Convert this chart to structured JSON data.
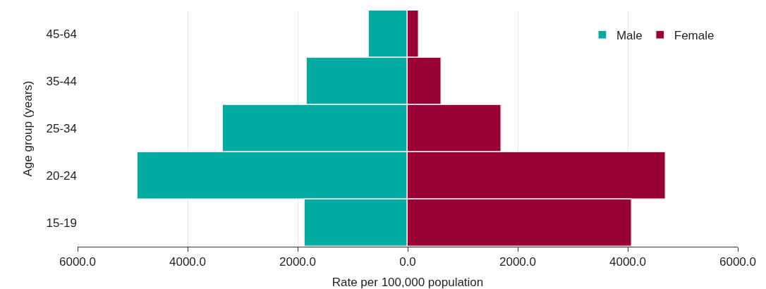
{
  "chart_data": {
    "type": "bar",
    "orientation": "horizontal",
    "xlabel": "Rate per 100,000 population",
    "ylabel": "Age group (years)",
    "categories": [
      "45-64",
      "35-44",
      "25-34",
      "20-24",
      "15-19"
    ],
    "series": [
      {
        "name": "Male",
        "color": "#00ac9f",
        "values": [
          -700,
          -1830,
          -3360,
          -4910,
          -1870
        ]
      },
      {
        "name": "Female",
        "color": "#990033",
        "values": [
          210,
          610,
          1700,
          4690,
          4080
        ]
      }
    ],
    "xlim": [
      -6000,
      6000
    ],
    "xticks": [
      {
        "value": -6000,
        "label": "6000.0"
      },
      {
        "value": -4000,
        "label": "4000.0"
      },
      {
        "value": -2000,
        "label": "2000.0"
      },
      {
        "value": 0,
        "label": "0.0"
      },
      {
        "value": 2000,
        "label": "2000.0"
      },
      {
        "value": 4000,
        "label": "4000.0"
      },
      {
        "value": 6000,
        "label": "6000.0"
      }
    ],
    "stacked": true,
    "grid": "x",
    "legend": "top right"
  }
}
